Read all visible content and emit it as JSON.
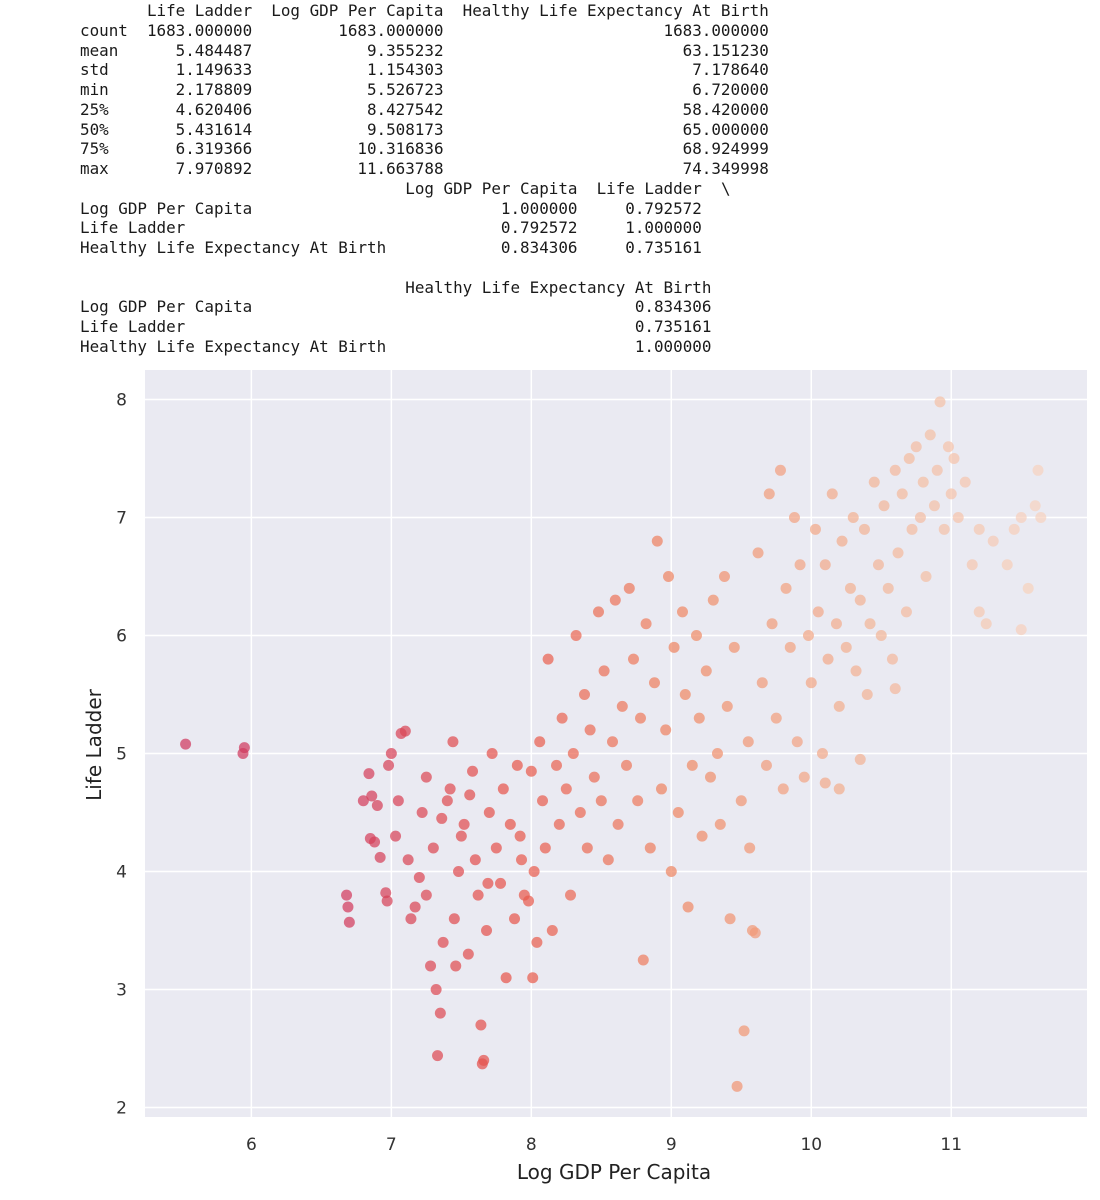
{
  "describe_table": {
    "columns": [
      "Life Ladder",
      "Log GDP Per Capita",
      "Healthy Life Expectancy At Birth"
    ],
    "rows": [
      {
        "index": "count",
        "values": [
          "1683.000000",
          "1683.000000",
          "1683.000000"
        ]
      },
      {
        "index": "mean",
        "values": [
          "5.484487",
          "9.355232",
          "63.151230"
        ]
      },
      {
        "index": "std",
        "values": [
          "1.149633",
          "1.154303",
          "7.178640"
        ]
      },
      {
        "index": "min",
        "values": [
          "2.178809",
          "5.526723",
          "6.720000"
        ]
      },
      {
        "index": "25%",
        "values": [
          "4.620406",
          "8.427542",
          "58.420000"
        ]
      },
      {
        "index": "50%",
        "values": [
          "5.431614",
          "9.508173",
          "65.000000"
        ]
      },
      {
        "index": "75%",
        "values": [
          "6.319366",
          "10.316836",
          "68.924999"
        ]
      },
      {
        "index": "max",
        "values": [
          "7.970892",
          "11.663788",
          "74.349998"
        ]
      }
    ]
  },
  "correlation_table": {
    "part1": {
      "columns": [
        "Log GDP Per Capita",
        "Life Ladder"
      ],
      "continuation": "\\",
      "rows": [
        {
          "index": "Log GDP Per Capita",
          "values": [
            "1.000000",
            "0.792572"
          ]
        },
        {
          "index": "Life Ladder",
          "values": [
            "0.792572",
            "1.000000"
          ]
        },
        {
          "index": "Healthy Life Expectancy At Birth",
          "values": [
            "0.834306",
            "0.735161"
          ]
        }
      ]
    },
    "part2": {
      "columns": [
        "Healthy Life Expectancy At Birth"
      ],
      "rows": [
        {
          "index": "Log GDP Per Capita",
          "values": [
            "0.834306"
          ]
        },
        {
          "index": "Life Ladder",
          "values": [
            "0.735161"
          ]
        },
        {
          "index": "Healthy Life Expectancy At Birth",
          "values": [
            "1.000000"
          ]
        }
      ]
    }
  },
  "chart_data": {
    "type": "scatter",
    "title": "",
    "xlabel": "Log GDP Per Capita",
    "ylabel": "Life Ladder",
    "xlim": [
      5.24,
      11.97
    ],
    "ylim": [
      1.92,
      8.25
    ],
    "xticks": [
      6,
      7,
      8,
      9,
      10,
      11
    ],
    "yticks": [
      2,
      3,
      4,
      5,
      6,
      7,
      8
    ],
    "grid": true,
    "background": "#eaeaf2",
    "palette": [
      "#d03a5e",
      "#e8574b",
      "#f08a65",
      "#f3b394",
      "#f6d3bf"
    ],
    "points": [
      [
        5.53,
        5.08
      ],
      [
        5.95,
        5.05
      ],
      [
        5.94,
        5.0
      ],
      [
        6.68,
        3.8
      ],
      [
        6.69,
        3.7
      ],
      [
        6.7,
        3.57
      ],
      [
        6.84,
        4.83
      ],
      [
        6.8,
        4.6
      ],
      [
        6.86,
        4.64
      ],
      [
        6.85,
        4.28
      ],
      [
        6.88,
        4.25
      ],
      [
        6.9,
        4.56
      ],
      [
        6.92,
        4.12
      ],
      [
        6.96,
        3.82
      ],
      [
        6.97,
        3.75
      ],
      [
        6.98,
        4.9
      ],
      [
        7.0,
        5.0
      ],
      [
        7.03,
        4.3
      ],
      [
        7.05,
        4.6
      ],
      [
        7.07,
        5.17
      ],
      [
        7.1,
        5.19
      ],
      [
        7.12,
        4.1
      ],
      [
        7.14,
        3.6
      ],
      [
        7.17,
        3.7
      ],
      [
        7.2,
        3.95
      ],
      [
        7.22,
        4.5
      ],
      [
        7.25,
        4.8
      ],
      [
        7.28,
        3.2
      ],
      [
        7.3,
        4.2
      ],
      [
        7.32,
        3.0
      ],
      [
        7.35,
        2.8
      ],
      [
        7.37,
        3.4
      ],
      [
        7.4,
        4.6
      ],
      [
        7.42,
        4.7
      ],
      [
        7.45,
        3.6
      ],
      [
        7.48,
        4.0
      ],
      [
        7.5,
        4.3
      ],
      [
        7.52,
        4.4
      ],
      [
        7.55,
        3.3
      ],
      [
        7.58,
        4.85
      ],
      [
        7.6,
        4.1
      ],
      [
        7.62,
        3.8
      ],
      [
        7.64,
        2.7
      ],
      [
        7.66,
        2.4
      ],
      [
        7.68,
        3.5
      ],
      [
        7.7,
        4.5
      ],
      [
        7.72,
        5.0
      ],
      [
        7.75,
        4.2
      ],
      [
        7.78,
        3.9
      ],
      [
        7.8,
        4.7
      ],
      [
        7.82,
        3.1
      ],
      [
        7.85,
        4.4
      ],
      [
        7.88,
        3.6
      ],
      [
        7.9,
        4.9
      ],
      [
        7.92,
        4.3
      ],
      [
        7.95,
        3.8
      ],
      [
        7.98,
        3.75
      ],
      [
        8.0,
        4.85
      ],
      [
        8.02,
        4.0
      ],
      [
        8.04,
        3.4
      ],
      [
        8.06,
        5.1
      ],
      [
        8.08,
        4.6
      ],
      [
        8.1,
        4.2
      ],
      [
        8.12,
        5.8
      ],
      [
        8.15,
        3.5
      ],
      [
        8.18,
        4.9
      ],
      [
        7.33,
        2.44
      ],
      [
        7.65,
        2.37
      ],
      [
        7.25,
        3.8
      ],
      [
        7.36,
        4.45
      ],
      [
        7.44,
        5.1
      ],
      [
        7.56,
        4.65
      ],
      [
        7.69,
        3.9
      ],
      [
        7.93,
        4.1
      ],
      [
        8.01,
        3.1
      ],
      [
        7.46,
        3.2
      ],
      [
        8.2,
        4.4
      ],
      [
        8.22,
        5.3
      ],
      [
        8.25,
        4.7
      ],
      [
        8.28,
        3.8
      ],
      [
        8.3,
        5.0
      ],
      [
        8.32,
        6.0
      ],
      [
        8.35,
        4.5
      ],
      [
        8.38,
        5.5
      ],
      [
        8.4,
        4.2
      ],
      [
        8.42,
        5.2
      ],
      [
        8.45,
        4.8
      ],
      [
        8.48,
        6.2
      ],
      [
        8.5,
        4.6
      ],
      [
        8.52,
        5.7
      ],
      [
        8.55,
        4.1
      ],
      [
        8.58,
        5.1
      ],
      [
        8.6,
        6.3
      ],
      [
        8.62,
        4.4
      ],
      [
        8.65,
        5.4
      ],
      [
        8.68,
        4.9
      ],
      [
        8.7,
        6.4
      ],
      [
        8.73,
        5.8
      ],
      [
        8.76,
        4.6
      ],
      [
        8.78,
        5.3
      ],
      [
        8.8,
        3.25
      ],
      [
        8.82,
        6.1
      ],
      [
        8.85,
        4.2
      ],
      [
        8.88,
        5.6
      ],
      [
        8.9,
        6.8
      ],
      [
        8.93,
        4.7
      ],
      [
        8.96,
        5.2
      ],
      [
        8.98,
        6.5
      ],
      [
        9.0,
        4.0
      ],
      [
        9.02,
        5.9
      ],
      [
        9.05,
        4.5
      ],
      [
        9.08,
        6.2
      ],
      [
        9.1,
        5.5
      ],
      [
        9.12,
        3.7
      ],
      [
        9.15,
        4.9
      ],
      [
        9.18,
        6.0
      ],
      [
        9.2,
        5.3
      ],
      [
        9.22,
        4.3
      ],
      [
        9.25,
        5.7
      ],
      [
        9.28,
        4.8
      ],
      [
        9.3,
        6.3
      ],
      [
        9.33,
        5.0
      ],
      [
        9.35,
        4.4
      ],
      [
        9.38,
        6.5
      ],
      [
        9.4,
        5.4
      ],
      [
        9.42,
        3.6
      ],
      [
        9.45,
        5.9
      ],
      [
        9.47,
        2.18
      ],
      [
        9.5,
        4.6
      ],
      [
        9.52,
        2.65
      ],
      [
        9.55,
        5.1
      ],
      [
        9.58,
        3.5
      ],
      [
        9.6,
        3.48
      ],
      [
        9.56,
        4.2
      ],
      [
        9.62,
        6.7
      ],
      [
        9.65,
        5.6
      ],
      [
        9.68,
        4.9
      ],
      [
        9.7,
        7.2
      ],
      [
        9.72,
        6.1
      ],
      [
        9.75,
        5.3
      ],
      [
        9.78,
        7.4
      ],
      [
        9.8,
        4.7
      ],
      [
        9.82,
        6.4
      ],
      [
        9.85,
        5.9
      ],
      [
        9.88,
        7.0
      ],
      [
        9.9,
        5.1
      ],
      [
        9.92,
        6.6
      ],
      [
        9.95,
        4.8
      ],
      [
        9.98,
        6.0
      ],
      [
        10.0,
        5.6
      ],
      [
        10.03,
        6.9
      ],
      [
        10.05,
        6.2
      ],
      [
        10.08,
        5.0
      ],
      [
        10.1,
        6.6
      ],
      [
        10.12,
        5.8
      ],
      [
        10.15,
        7.2
      ],
      [
        10.18,
        6.1
      ],
      [
        10.2,
        5.4
      ],
      [
        10.22,
        6.8
      ],
      [
        10.25,
        5.9
      ],
      [
        10.28,
        6.4
      ],
      [
        10.3,
        7.0
      ],
      [
        10.32,
        5.7
      ],
      [
        10.35,
        6.3
      ],
      [
        10.38,
        6.9
      ],
      [
        10.4,
        5.5
      ],
      [
        10.42,
        6.1
      ],
      [
        10.45,
        7.3
      ],
      [
        10.48,
        6.6
      ],
      [
        10.5,
        6.0
      ],
      [
        10.52,
        7.1
      ],
      [
        10.55,
        6.4
      ],
      [
        10.58,
        5.8
      ],
      [
        10.6,
        7.4
      ],
      [
        10.62,
        6.7
      ],
      [
        10.65,
        7.2
      ],
      [
        10.68,
        6.2
      ],
      [
        10.7,
        7.5
      ],
      [
        10.72,
        6.9
      ],
      [
        10.75,
        7.6
      ],
      [
        10.78,
        7.0
      ],
      [
        10.8,
        7.3
      ],
      [
        10.82,
        6.5
      ],
      [
        10.85,
        7.7
      ],
      [
        10.88,
        7.1
      ],
      [
        10.9,
        7.4
      ],
      [
        10.92,
        7.98
      ],
      [
        10.95,
        6.9
      ],
      [
        10.98,
        7.6
      ],
      [
        11.0,
        7.2
      ],
      [
        11.02,
        7.5
      ],
      [
        11.05,
        7.0
      ],
      [
        11.1,
        7.3
      ],
      [
        11.15,
        6.6
      ],
      [
        11.2,
        6.9
      ],
      [
        11.3,
        6.8
      ],
      [
        11.4,
        6.6
      ],
      [
        11.45,
        6.9
      ],
      [
        11.5,
        7.0
      ],
      [
        11.55,
        6.4
      ],
      [
        11.6,
        7.1
      ],
      [
        11.62,
        7.4
      ],
      [
        11.64,
        7.0
      ],
      [
        11.2,
        6.2
      ],
      [
        11.25,
        6.1
      ],
      [
        11.5,
        6.05
      ],
      [
        10.6,
        5.55
      ],
      [
        10.35,
        4.95
      ],
      [
        10.1,
        4.75
      ],
      [
        10.2,
        4.7
      ]
    ]
  }
}
